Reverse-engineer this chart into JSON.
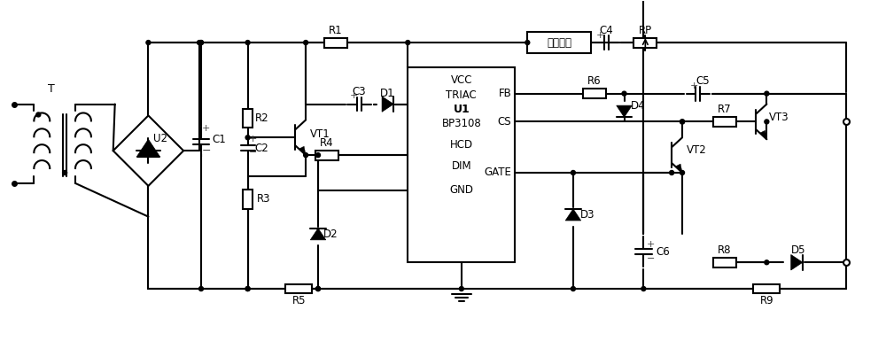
{
  "bg_color": "#ffffff",
  "lw": 1.5,
  "labels": {
    "T": "T",
    "U2": "U2",
    "C1": "C1",
    "C2": "C2",
    "R2": "R2",
    "R3": "R3",
    "R1": "R1",
    "C3": "C3",
    "D1": "D1",
    "VT1": "VT1",
    "R4": "R4",
    "D2": "D2",
    "R5": "R5",
    "U1_line1": "VCC",
    "U1_line2": "TRIAC",
    "U1_line3": "U1",
    "U1_line4": "BP3108",
    "U1_line5": "HCD",
    "U1_line6": "DIM",
    "U1_line7": "GND",
    "FB": "FB",
    "CS": "CS",
    "GATE": "GATE",
    "baohu": "保护电路",
    "C4": "C4",
    "RP": "RP",
    "R6": "R6",
    "D4": "D4",
    "C5": "C5",
    "VT3": "VT3",
    "R7": "R7",
    "VT2": "VT2",
    "D3": "D3",
    "C6": "C6",
    "R8": "R8",
    "D5": "D5",
    "R9": "R9"
  },
  "figsize": [
    10.0,
    3.85
  ],
  "dpi": 100
}
